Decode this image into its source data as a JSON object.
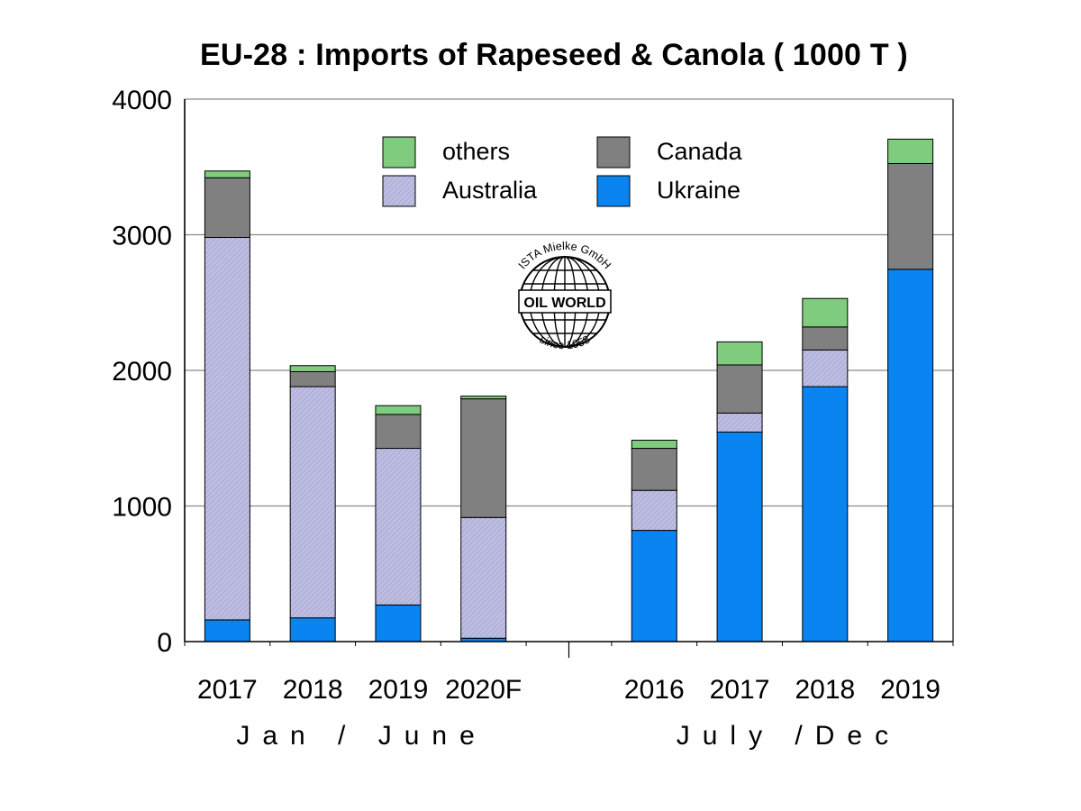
{
  "chart_data": {
    "type": "bar",
    "stacked": true,
    "title": "EU-28 : Imports of Rapeseed & Canola ( 1000 T )",
    "xlabel": "",
    "ylabel": "",
    "ylim": [
      0,
      4000
    ],
    "yticks": [
      "0",
      "1000",
      "2000",
      "3000",
      "4000"
    ],
    "grid": true,
    "legend_position": "top",
    "categories": [
      "2017",
      "2018",
      "2019",
      "2020F",
      "",
      "2016",
      "2017",
      "2018",
      "2019"
    ],
    "groups": [
      {
        "label": "Jan / June",
        "categories": [
          0,
          3
        ]
      },
      {
        "label": "July /Dec",
        "categories": [
          5,
          8
        ]
      }
    ],
    "series": [
      {
        "name": "Ukraine",
        "color": "#0a84f0",
        "values": [
          160,
          175,
          270,
          25,
          null,
          820,
          1545,
          1880,
          2745
        ]
      },
      {
        "name": "Australia",
        "color": "#b7b7dd",
        "values": [
          2820,
          1705,
          1155,
          890,
          null,
          295,
          140,
          270,
          0
        ]
      },
      {
        "name": "Canada",
        "color": "#808080",
        "values": [
          440,
          110,
          250,
          875,
          null,
          310,
          355,
          170,
          780
        ]
      },
      {
        "name": "others",
        "color": "#7fcc7f",
        "values": [
          50,
          45,
          65,
          20,
          null,
          60,
          170,
          210,
          180
        ]
      }
    ],
    "legend_order": [
      "others",
      "Canada",
      "Australia",
      "Ukraine"
    ]
  },
  "logo": {
    "arc_top": "ISTA Mielke GmbH",
    "center": "OIL WORLD",
    "arc_bottom": "since 1958"
  }
}
